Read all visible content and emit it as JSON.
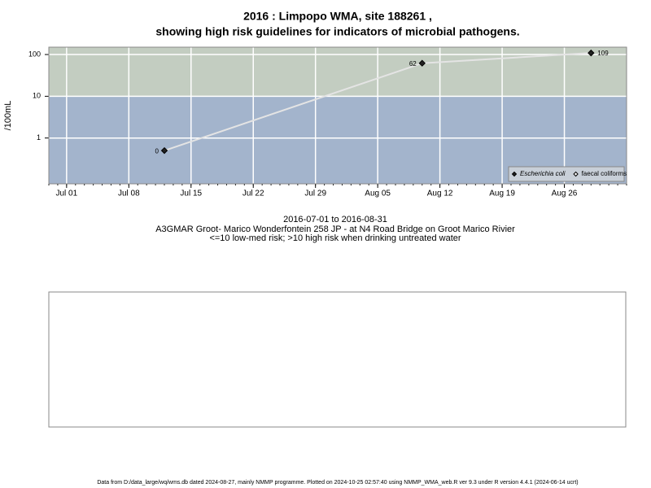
{
  "chart_data": {
    "type": "line",
    "title": [
      "2016 : Limpopo WMA, site 188261 ,",
      "showing high risk guidelines for indicators of microbial pathogens."
    ],
    "y_label": "/100mL",
    "x_label": [
      "2016-07-01 to 2016-08-31",
      "A3GMAR Groot- Marico Wonderfontein 258 JP - at N4 Road Bridge on Groot Marico Rivier",
      "<=10 low-med risk; >10 high risk when drinking untreated water"
    ],
    "x": [
      "2016-07-12",
      "2016-08-10",
      "2016-08-29"
    ],
    "series": [
      {
        "name": "Escherichia coli",
        "color": "#222222",
        "values": [
          0.5,
          62,
          109
        ],
        "value_labels": [
          "0",
          "62",
          "109"
        ]
      },
      {
        "name": "faecal coliforms",
        "color": "#ffffff",
        "values": [
          null,
          null,
          null
        ]
      }
    ],
    "guideline": 10,
    "band_colors": {
      "above": "#c3cdc1",
      "below": "#a3b4cc"
    },
    "line_color": "#e4e4e4",
    "log_y": true,
    "ylim": [
      0.08,
      150
    ],
    "yticks": [
      1,
      10,
      100
    ],
    "xlim": [
      "2016-06-29",
      "2016-09-02"
    ],
    "xticks": [
      {
        "value": "2016-07-01",
        "label": "Jul 01"
      },
      {
        "value": "2016-07-08",
        "label": "Jul 08"
      },
      {
        "value": "2016-07-15",
        "label": "Jul 15"
      },
      {
        "value": "2016-07-22",
        "label": "Jul 22"
      },
      {
        "value": "2016-07-29",
        "label": "Jul 29"
      },
      {
        "value": "2016-08-05",
        "label": "Aug 05"
      },
      {
        "value": "2016-08-12",
        "label": "Aug 12"
      },
      {
        "value": "2016-08-19",
        "label": "Aug 19"
      },
      {
        "value": "2016-08-26",
        "label": "Aug 26"
      }
    ],
    "grid": true,
    "legend": "bottom-right",
    "footer": "Data from D:/data_large/wq/wms.db dated 2024-08-27, mainly NMMP programme. Plotted on 2024-10-25 02:57:40 using NMMP_WMA_web.R ver 9.3 under R version 4.4.1 (2024-06-14 ucrt)"
  }
}
